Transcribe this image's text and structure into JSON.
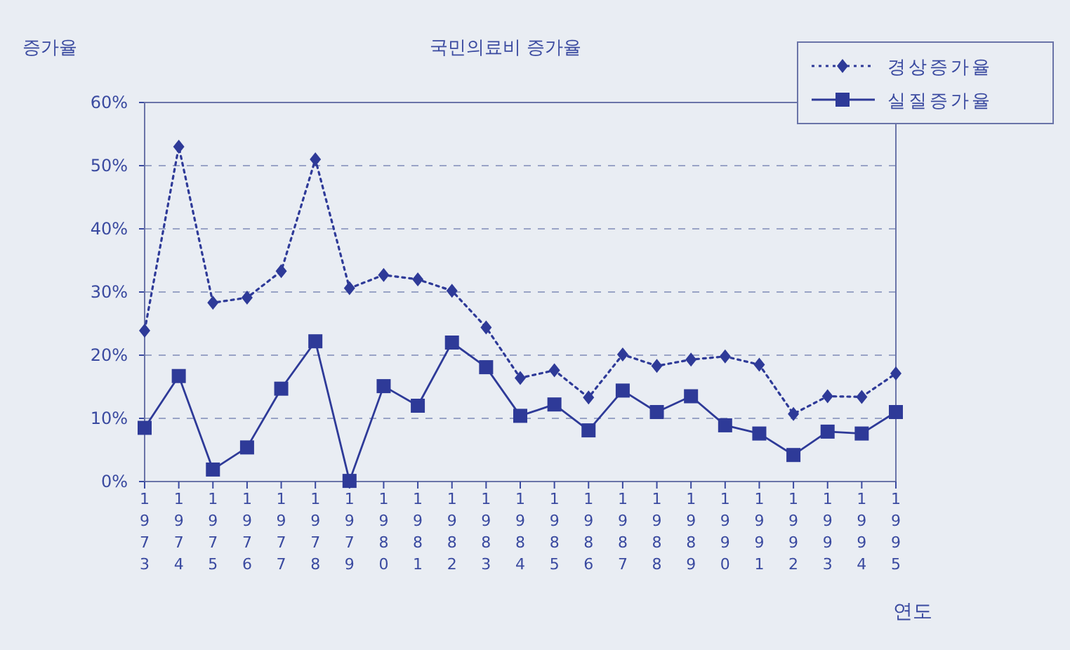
{
  "chart_data": {
    "type": "line",
    "title": "국민의료비 증가율",
    "ylabel": "증가율",
    "xlabel": "연도",
    "categories": [
      "1973",
      "1974",
      "1975",
      "1976",
      "1977",
      "1978",
      "1979",
      "1980",
      "1981",
      "1982",
      "1983",
      "1984",
      "1985",
      "1986",
      "1987",
      "1988",
      "1989",
      "1990",
      "1991",
      "1992",
      "1993",
      "1994",
      "1995"
    ],
    "ylim": [
      0,
      60
    ],
    "yticks": [
      {
        "value": 0,
        "label": "0%"
      },
      {
        "value": 10,
        "label": "10%"
      },
      {
        "value": 20,
        "label": "20%"
      },
      {
        "value": 30,
        "label": "30%"
      },
      {
        "value": 40,
        "label": "40%"
      },
      {
        "value": 50,
        "label": "50%"
      },
      {
        "value": 60,
        "label": "60%"
      }
    ],
    "grid": "y",
    "legend": "top right",
    "series": [
      {
        "name": "경상증가율",
        "color": "#2e3a98",
        "marker": "diamond",
        "line_style": "dotted",
        "values": [
          23.9,
          53.0,
          28.3,
          29.1,
          33.3,
          51.0,
          30.6,
          32.7,
          32.0,
          30.2,
          24.4,
          16.4,
          17.6,
          13.3,
          20.1,
          18.3,
          19.3,
          19.8,
          18.5,
          10.7,
          13.5,
          13.4,
          17.1
        ]
      },
      {
        "name": "실질증가율",
        "color": "#2e3a98",
        "marker": "square",
        "line_style": "solid",
        "values": [
          8.5,
          16.7,
          1.9,
          5.4,
          14.7,
          22.2,
          0.1,
          15.1,
          12.0,
          22.0,
          18.1,
          10.4,
          12.2,
          8.1,
          14.4,
          11.0,
          13.5,
          8.9,
          7.6,
          4.2,
          7.9,
          7.6,
          11.0
        ]
      }
    ]
  }
}
